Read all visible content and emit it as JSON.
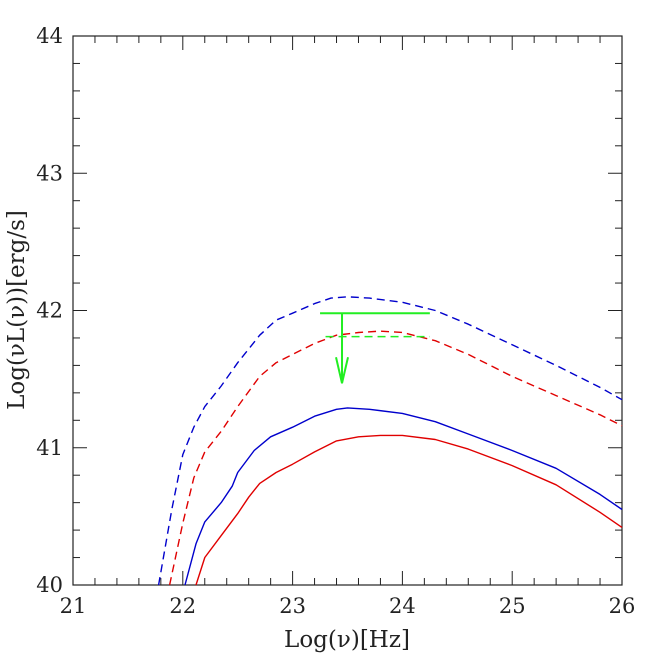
{
  "chart_data": {
    "type": "line",
    "xlabel": "Log(ν)[Hz]",
    "ylabel": "Log(νL(ν))[erg/s]",
    "xlim": [
      21,
      26
    ],
    "ylim": [
      40,
      44
    ],
    "x_ticks": [
      "21",
      "22",
      "23",
      "24",
      "25",
      "26"
    ],
    "y_ticks": [
      "40",
      "41",
      "42",
      "43",
      "44"
    ],
    "grid": false,
    "legend": "none",
    "series": [
      {
        "color": "#0000cc",
        "dash": true,
        "points": [
          [
            21.78,
            40
          ],
          [
            21.9,
            40.55
          ],
          [
            22.0,
            40.95
          ],
          [
            22.1,
            41.15
          ],
          [
            22.2,
            41.3
          ],
          [
            22.35,
            41.45
          ],
          [
            22.5,
            41.62
          ],
          [
            22.7,
            41.82
          ],
          [
            22.85,
            41.93
          ],
          [
            23.0,
            41.98
          ],
          [
            23.2,
            42.05
          ],
          [
            23.35,
            42.09
          ],
          [
            23.5,
            42.1
          ],
          [
            23.7,
            42.09
          ],
          [
            24.0,
            42.06
          ],
          [
            24.3,
            42.0
          ],
          [
            24.6,
            41.9
          ],
          [
            25.0,
            41.75
          ],
          [
            25.4,
            41.6
          ],
          [
            25.8,
            41.44
          ],
          [
            26.0,
            41.35
          ]
        ]
      },
      {
        "color": "#e00000",
        "dash": true,
        "points": [
          [
            21.88,
            40
          ],
          [
            22.0,
            40.45
          ],
          [
            22.1,
            40.78
          ],
          [
            22.2,
            40.97
          ],
          [
            22.35,
            41.12
          ],
          [
            22.5,
            41.3
          ],
          [
            22.7,
            41.52
          ],
          [
            22.85,
            41.62
          ],
          [
            23.0,
            41.68
          ],
          [
            23.2,
            41.76
          ],
          [
            23.4,
            41.82
          ],
          [
            23.6,
            41.84
          ],
          [
            23.8,
            41.85
          ],
          [
            24.0,
            41.84
          ],
          [
            24.3,
            41.78
          ],
          [
            24.6,
            41.68
          ],
          [
            25.0,
            41.52
          ],
          [
            25.4,
            41.38
          ],
          [
            25.8,
            41.24
          ],
          [
            26.0,
            41.16
          ]
        ]
      },
      {
        "color": "#0000cc",
        "dash": false,
        "points": [
          [
            22.02,
            40
          ],
          [
            22.12,
            40.3
          ],
          [
            22.2,
            40.46
          ],
          [
            22.35,
            40.6
          ],
          [
            22.45,
            40.72
          ],
          [
            22.5,
            40.82
          ],
          [
            22.65,
            40.98
          ],
          [
            22.8,
            41.08
          ],
          [
            23.0,
            41.15
          ],
          [
            23.2,
            41.23
          ],
          [
            23.4,
            41.28
          ],
          [
            23.5,
            41.29
          ],
          [
            23.7,
            41.28
          ],
          [
            24.0,
            41.25
          ],
          [
            24.3,
            41.19
          ],
          [
            24.6,
            41.1
          ],
          [
            25.0,
            40.98
          ],
          [
            25.4,
            40.85
          ],
          [
            25.8,
            40.66
          ],
          [
            26.0,
            40.55
          ]
        ]
      },
      {
        "color": "#e00000",
        "dash": false,
        "points": [
          [
            22.12,
            40
          ],
          [
            22.2,
            40.2
          ],
          [
            22.35,
            40.36
          ],
          [
            22.5,
            40.52
          ],
          [
            22.6,
            40.64
          ],
          [
            22.7,
            40.74
          ],
          [
            22.85,
            40.82
          ],
          [
            23.0,
            40.88
          ],
          [
            23.2,
            40.97
          ],
          [
            23.4,
            41.05
          ],
          [
            23.6,
            41.08
          ],
          [
            23.8,
            41.09
          ],
          [
            24.0,
            41.09
          ],
          [
            24.3,
            41.06
          ],
          [
            24.6,
            40.99
          ],
          [
            25.0,
            40.87
          ],
          [
            25.4,
            40.73
          ],
          [
            25.8,
            40.53
          ],
          [
            26.0,
            40.42
          ]
        ]
      }
    ],
    "upper_limit": {
      "color": "#22ee22",
      "bar_y": 41.98,
      "bar_x": [
        23.25,
        24.25
      ],
      "arrow_x": 23.45,
      "arrow_to_y": 41.47,
      "dashed_y": 41.81,
      "dashed_x": [
        23.3,
        24.25
      ]
    }
  }
}
